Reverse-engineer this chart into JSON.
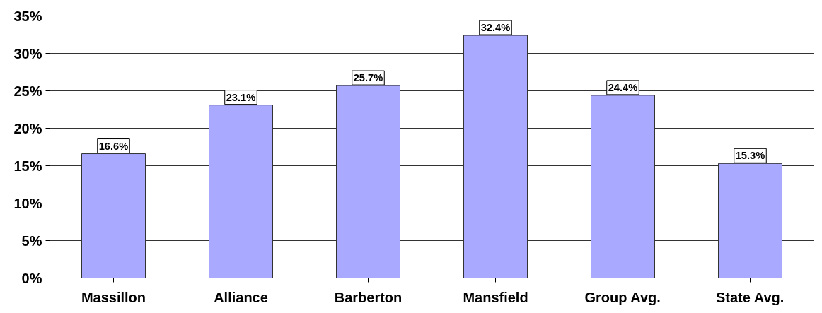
{
  "chart_data": {
    "type": "bar",
    "categories": [
      "Massillon",
      "Alliance",
      "Barberton",
      "Mansfield",
      "Group Avg.",
      "State Avg."
    ],
    "values": [
      16.6,
      23.1,
      25.7,
      32.4,
      24.4,
      15.3
    ],
    "color": "#a9a9ff",
    "value_labels": [
      "16.6%",
      "23.1%",
      "25.7%",
      "32.4%",
      "24.4%",
      "15.3%"
    ],
    "ylim": [
      0,
      35
    ],
    "yticks": [
      {
        "value": 0,
        "label": "0%"
      },
      {
        "value": 5,
        "label": "5%"
      },
      {
        "value": 10,
        "label": "10%"
      },
      {
        "value": 15,
        "label": "15%"
      },
      {
        "value": 20,
        "label": "20%"
      },
      {
        "value": 25,
        "label": "25%"
      },
      {
        "value": 30,
        "label": "30%"
      },
      {
        "value": 35,
        "label": "35%"
      }
    ],
    "grid": "y"
  }
}
